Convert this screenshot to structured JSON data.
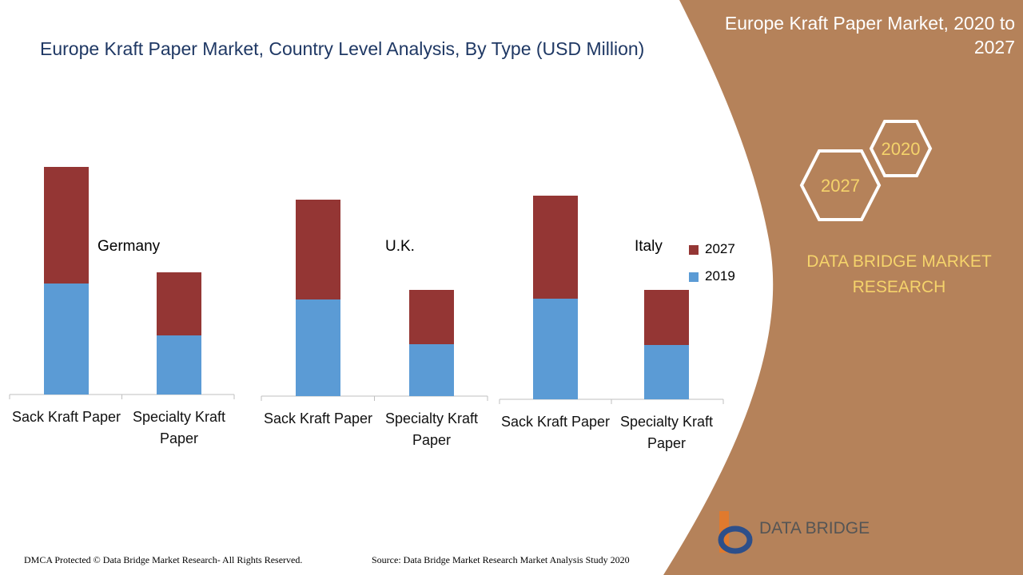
{
  "header": {
    "title": "Europe Kraft Paper Market, Country Level Analysis, By Type (USD Million)"
  },
  "side_panel": {
    "title": "Europe Kraft Paper Market, 2020 to 2027",
    "hex_1": "2020",
    "hex_2": "2027",
    "brand": "DATA BRIDGE MARKET RESEARCH",
    "logo": "DATA BRIDGE"
  },
  "footer": {
    "left": "DMCA Protected © Data Bridge Market Research- All Rights Reserved.",
    "right": "Source: Data Bridge Market Research Market Analysis Study 2020"
  },
  "chart_data": [
    {
      "type": "bar",
      "stacked": true,
      "title": "Germany",
      "categories": [
        "Sack Kraft Paper",
        "Specialty Kraft Paper"
      ],
      "series": [
        {
          "color": "#5b9bd5",
          "values": [
            139,
            74
          ]
        },
        {
          "color": "#943634",
          "values": [
            146,
            79
          ]
        }
      ]
    },
    {
      "type": "bar",
      "stacked": true,
      "title": "U.K.",
      "categories": [
        "Sack Kraft Paper",
        "Specialty Kraft Paper"
      ],
      "series": [
        {
          "color": "#5b9bd5",
          "values": [
            121,
            65
          ]
        },
        {
          "color": "#943634",
          "values": [
            125,
            68
          ]
        }
      ]
    },
    {
      "type": "bar",
      "stacked": true,
      "title": "Italy",
      "categories": [
        "Sack Kraft Paper",
        "Specialty Kraft Paper"
      ],
      "series": [
        {
          "name": "2019",
          "color": "#5b9bd5",
          "values": [
            126,
            68
          ]
        },
        {
          "name": "2027",
          "color": "#943634",
          "values": [
            129,
            69
          ]
        }
      ]
    }
  ]
}
